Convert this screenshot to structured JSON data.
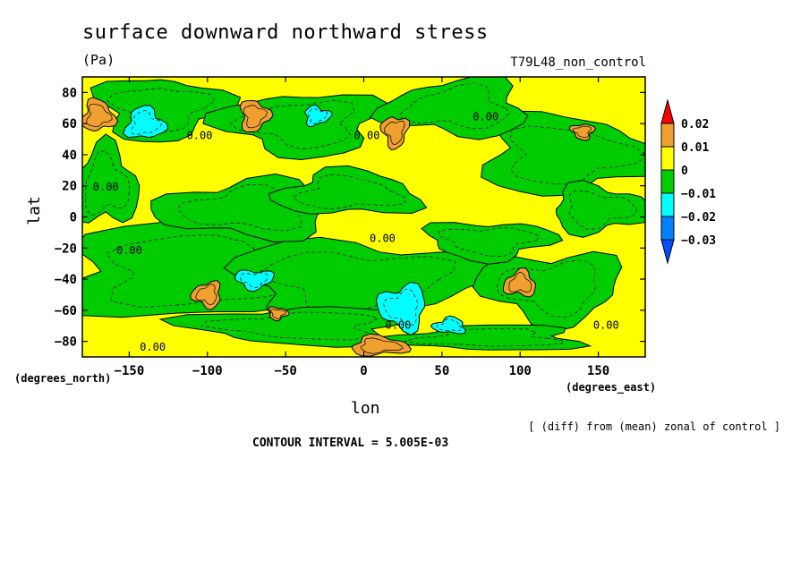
{
  "chart_data": {
    "type": "heatmap",
    "title": "surface downward northward stress",
    "units": "(Pa)",
    "run_label": "T79L48_non_control",
    "xlabel": "lon",
    "ylabel": "lat",
    "x_units": "(degrees_east)",
    "y_units": "(degrees_north)",
    "xlim": [
      -180,
      180
    ],
    "ylim": [
      -90,
      90
    ],
    "x_ticks": [
      -150,
      -100,
      -50,
      0,
      50,
      100,
      150
    ],
    "x_tick_labels": [
      "−150",
      "−100",
      "−50",
      "0",
      "50",
      "100",
      "150"
    ],
    "y_ticks": [
      80,
      60,
      40,
      20,
      0,
      -20,
      -40,
      -60,
      -80
    ],
    "y_tick_labels": [
      "80",
      "60",
      "40",
      "20",
      "0",
      "−20",
      "−40",
      "−60",
      "−80"
    ],
    "colorbar": {
      "levels": [
        0.02,
        0.01,
        0,
        -0.01,
        -0.02,
        -0.03
      ],
      "labels": [
        "0.02",
        "0.01",
        "0",
        "−0.01",
        "−0.02",
        "−0.03"
      ],
      "colors": [
        "#ff0000",
        "#f0a030",
        "#ffff00",
        "#00cc00",
        "#00ffff",
        "#0080ff",
        "#0050ff"
      ]
    },
    "fill_colors": {
      "background": "#ffff00",
      "negative": "#00cc00",
      "strong_negative": "#00ffff",
      "positive": "#f0a030"
    },
    "contour_labels": [
      {
        "lon": -105,
        "lat": 50,
        "text": "0.00"
      },
      {
        "lon": -165,
        "lat": 17,
        "text": "0.00"
      },
      {
        "lon": -150,
        "lat": -24,
        "text": "0.00"
      },
      {
        "lon": 12,
        "lat": -16,
        "text": "0.00"
      },
      {
        "lon": 78,
        "lat": 62,
        "text": "0.00"
      },
      {
        "lon": 2,
        "lat": 50,
        "text": "0.00"
      },
      {
        "lon": 22,
        "lat": -72,
        "text": "0.00"
      },
      {
        "lon": 155,
        "lat": -72,
        "text": "0.00"
      },
      {
        "lon": -135,
        "lat": -86,
        "text": "0.00"
      }
    ],
    "regions": {
      "negative": [
        {
          "lon": -95,
          "lat": -35,
          "rlon": 105,
          "rlat": 30
        },
        {
          "lon": -5,
          "lat": -40,
          "rlon": 80,
          "rlat": 25
        },
        {
          "lon": 120,
          "lat": -45,
          "rlon": 45,
          "rlat": 22
        },
        {
          "lon": -75,
          "lat": 5,
          "rlon": 55,
          "rlat": 18
        },
        {
          "lon": -10,
          "lat": 15,
          "rlon": 45,
          "rlat": 14
        },
        {
          "lon": 130,
          "lat": 40,
          "rlon": 55,
          "rlat": 25
        },
        {
          "lon": -130,
          "lat": 70,
          "rlon": 40,
          "rlat": 20
        },
        {
          "lon": -40,
          "lat": 60,
          "rlon": 50,
          "rlat": 20
        },
        {
          "lon": 60,
          "lat": 70,
          "rlon": 45,
          "rlat": 18
        },
        {
          "lon": -165,
          "lat": 20,
          "rlon": 20,
          "rlat": 25
        },
        {
          "lon": 150,
          "lat": 5,
          "rlon": 30,
          "rlat": 15
        },
        {
          "lon": 80,
          "lat": -15,
          "rlon": 40,
          "rlat": 12
        },
        {
          "lon": -40,
          "lat": -70,
          "rlon": 70,
          "rlat": 12
        },
        {
          "lon": 80,
          "lat": -78,
          "rlon": 60,
          "rlat": 8
        }
      ],
      "strong_negative": [
        {
          "lon": -140,
          "lat": 60,
          "rlon": 12,
          "rlat": 10
        },
        {
          "lon": -30,
          "lat": 65,
          "rlon": 8,
          "rlat": 6
        },
        {
          "lon": -70,
          "lat": -40,
          "rlon": 12,
          "rlat": 6
        },
        {
          "lon": 25,
          "lat": -58,
          "rlon": 15,
          "rlat": 14
        },
        {
          "lon": 55,
          "lat": -70,
          "rlon": 10,
          "rlat": 5
        }
      ],
      "positive": [
        {
          "lon": -170,
          "lat": 65,
          "rlon": 10,
          "rlat": 10
        },
        {
          "lon": -70,
          "lat": 65,
          "rlon": 9,
          "rlat": 10
        },
        {
          "lon": 20,
          "lat": 55,
          "rlon": 8,
          "rlat": 10
        },
        {
          "lon": -100,
          "lat": -50,
          "rlon": 9,
          "rlat": 8
        },
        {
          "lon": 100,
          "lat": -43,
          "rlon": 10,
          "rlat": 8
        },
        {
          "lon": 10,
          "lat": -83,
          "rlon": 18,
          "rlat": 6
        },
        {
          "lon": -55,
          "lat": -62,
          "rlon": 6,
          "rlat": 4
        },
        {
          "lon": 140,
          "lat": 55,
          "rlon": 7,
          "rlat": 5
        }
      ]
    }
  },
  "footer": {
    "note": "[ (diff) from (mean) zonal of control ]",
    "contour_interval": "CONTOUR INTERVAL = 5.005E-03"
  }
}
